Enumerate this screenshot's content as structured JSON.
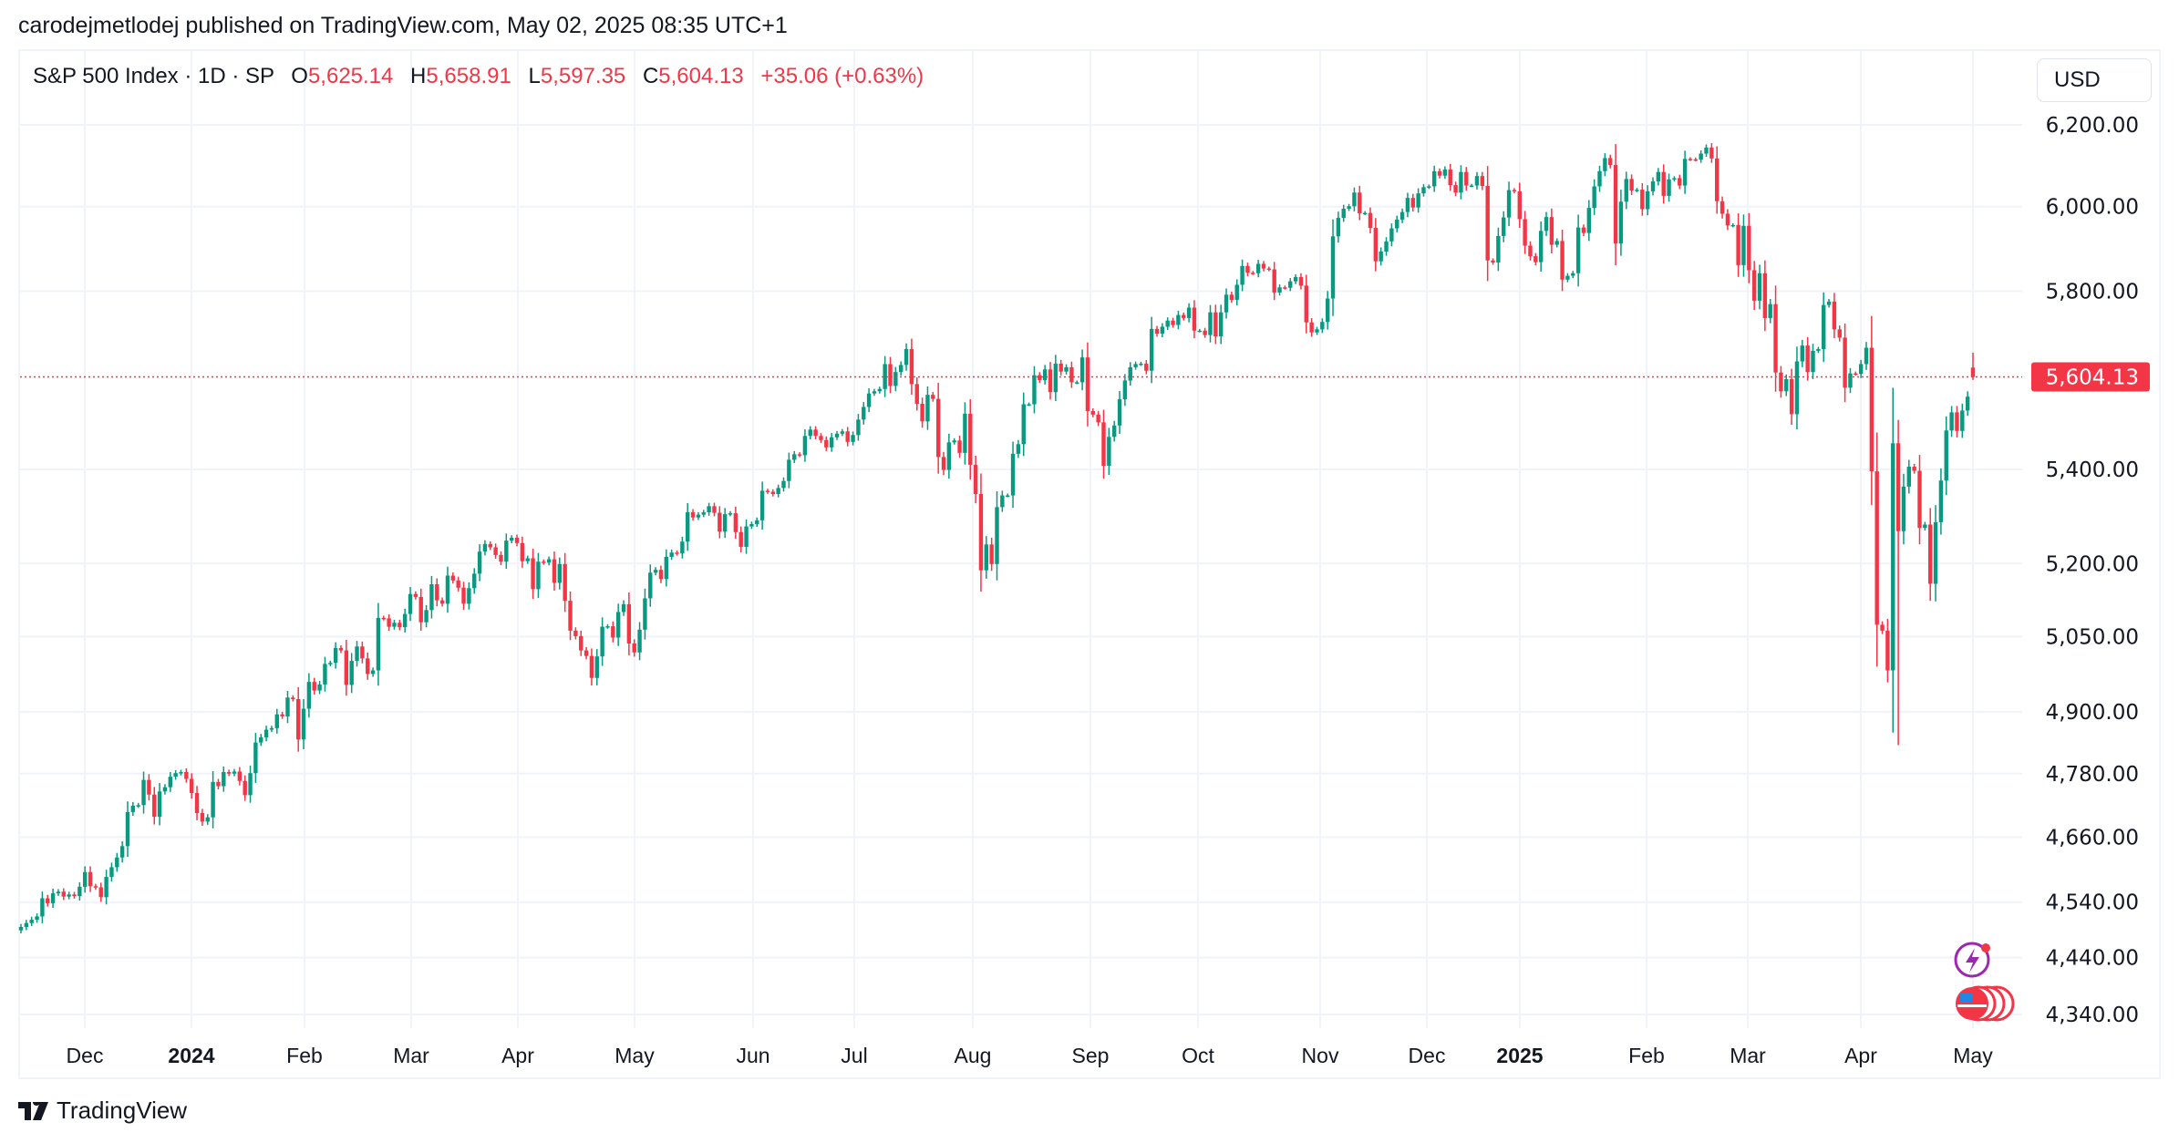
{
  "published": "carodejmetlodej published on TradingView.com, May 02, 2025 08:35 UTC+1",
  "legend": {
    "symbol": "S&P 500 Index · 1D · SP",
    "o_label": "O",
    "o": "5,625.14",
    "h_label": "H",
    "h": "5,658.91",
    "l_label": "L",
    "l": "5,597.35",
    "c_label": "C",
    "c": "5,604.13",
    "change": "+35.06 (+0.63%)"
  },
  "currency": "USD",
  "brand": "TradingView",
  "colors": {
    "up": "#089981",
    "down": "#F23645",
    "grid": "#f0f3fa",
    "last_price": "#F23645"
  },
  "icons": [
    "lightning-icon",
    "us-flag-icon"
  ],
  "chart_data": {
    "type": "candlestick",
    "interval": "1D",
    "y_scale": "log",
    "ylim": [
      4300,
      6300
    ],
    "grid": true,
    "y_ticks": [
      "6,200.00",
      "6,000.00",
      "5,800.00",
      "5,400.00",
      "5,200.00",
      "5,050.00",
      "4,900.00",
      "4,780.00",
      "4,660.00",
      "4,540.00",
      "4,440.00",
      "4,340.00"
    ],
    "x_ticks": [
      "Dec",
      "2024",
      "Feb",
      "Mar",
      "Apr",
      "May",
      "Jun",
      "Jul",
      "Aug",
      "Sep",
      "Oct",
      "Nov",
      "Dec",
      "2025",
      "Feb",
      "Mar",
      "Apr",
      "May"
    ],
    "last_price": 5604.13,
    "last_price_label": "5,604.13",
    "date_range": [
      "2023-11-14",
      "2025-05-01"
    ],
    "closes": [
      4495,
      4502,
      4508,
      4514,
      4547,
      4538,
      4556,
      4559,
      4550,
      4554,
      4551,
      4568,
      4595,
      4569,
      4567,
      4549,
      4586,
      4604,
      4622,
      4643,
      4707,
      4719,
      4720,
      4768,
      4740,
      4698,
      4746,
      4754,
      4774,
      4781,
      4783,
      4770,
      4743,
      4705,
      4689,
      4697,
      4764,
      4756,
      4783,
      4780,
      4784,
      4766,
      4739,
      4781,
      4840,
      4850,
      4865,
      4868,
      4895,
      4891,
      4928,
      4925,
      4846,
      4906,
      4959,
      4942,
      4954,
      4995,
      4997,
      5027,
      5022,
      4953,
      5001,
      5030,
      5006,
      4975,
      4982,
      5088,
      5087,
      5070,
      5078,
      5069,
      5096,
      5137,
      5131,
      5079,
      5104,
      5157,
      5124,
      5117,
      5175,
      5165,
      5150,
      5117,
      5149,
      5179,
      5225,
      5241,
      5234,
      5218,
      5204,
      5248,
      5254,
      5243,
      5205,
      5211,
      5147,
      5204,
      5202,
      5209,
      5160,
      5199,
      5123,
      5062,
      5051,
      5022,
      5011,
      4967,
      5010,
      5070,
      5071,
      5048,
      5100,
      5116,
      5036,
      5018,
      5064,
      5128,
      5181,
      5187,
      5168,
      5214,
      5223,
      5221,
      5246,
      5308,
      5297,
      5303,
      5308,
      5321,
      5307,
      5267,
      5304,
      5306,
      5266,
      5235,
      5278,
      5283,
      5291,
      5354,
      5352,
      5347,
      5360,
      5375,
      5421,
      5433,
      5431,
      5473,
      5487,
      5473,
      5464,
      5448,
      5470,
      5478,
      5483,
      5460,
      5475,
      5509,
      5537,
      5567,
      5572,
      5577,
      5633,
      5584,
      5615,
      5631,
      5667,
      5588,
      5544,
      5505,
      5564,
      5555,
      5427,
      5399,
      5459,
      5463,
      5436,
      5522,
      5410,
      5347,
      5186,
      5240,
      5199,
      5319,
      5344,
      5344,
      5434,
      5455,
      5543,
      5543,
      5608,
      5597,
      5621,
      5570,
      5634,
      5616,
      5626,
      5592,
      5592,
      5648,
      5528,
      5520,
      5503,
      5408,
      5471,
      5496,
      5554,
      5596,
      5626,
      5633,
      5634,
      5618,
      5713,
      5702,
      5718,
      5732,
      5722,
      5745,
      5738,
      5762,
      5709,
      5709,
      5699,
      5751,
      5696,
      5751,
      5792,
      5780,
      5815,
      5859,
      5843,
      5842,
      5864,
      5853,
      5851,
      5797,
      5809,
      5808,
      5823,
      5833,
      5813,
      5728,
      5705,
      5712,
      5729,
      5783,
      5929,
      5973,
      5995,
      6001,
      6034,
      5984,
      5985,
      5949,
      5870,
      5893,
      5917,
      5948,
      5969,
      5987,
      6021,
      5998,
      6032,
      6047,
      6049,
      6086,
      6075,
      6090,
      6052,
      6034,
      6084,
      6051,
      6051,
      6074,
      6050,
      5872,
      5867,
      5930,
      5974,
      6040,
      6037,
      5970,
      5907,
      5882,
      5868,
      5942,
      5975,
      5909,
      5918,
      5827,
      5836,
      5842,
      5950,
      5937,
      5997,
      6049,
      6086,
      6118,
      6101,
      5912,
      6012,
      6067,
      6039,
      6041,
      5994,
      6037,
      6061,
      6084,
      6026,
      6066,
      6069,
      6051,
      6116,
      6115,
      6114,
      6129,
      6144,
      6117,
      6013,
      5983,
      5955,
      5956,
      5861,
      5954,
      5849,
      5778,
      5842,
      5738,
      5770,
      5614,
      5572,
      5599,
      5521,
      5639,
      5675,
      5615,
      5663,
      5667,
      5768,
      5776,
      5712,
      5693,
      5580,
      5612,
      5611,
      5633,
      5670,
      5396,
      5074,
      5062,
      4982,
      5457,
      5268,
      5363,
      5406,
      5397,
      5275,
      5282,
      5158,
      5287,
      5376,
      5485,
      5525,
      5484,
      5529,
      5560,
      5604
    ]
  }
}
